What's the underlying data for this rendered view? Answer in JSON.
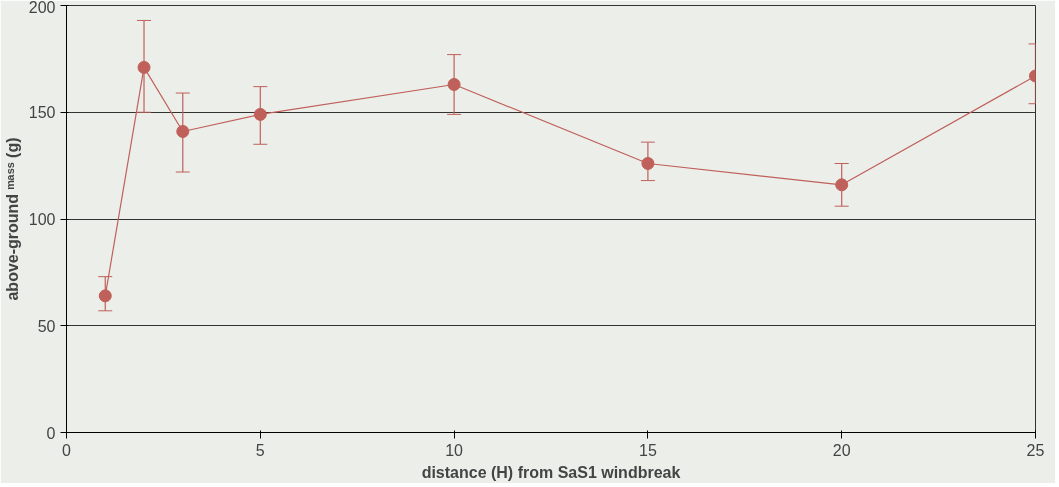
{
  "chart_data": {
    "type": "line",
    "xlabel": "distance (H) from SaS1 windbreak",
    "ylabel": "above-ground ᵐᵃˢˢ (g)",
    "x": [
      1,
      2,
      3,
      5,
      10,
      15,
      20,
      25
    ],
    "series": [
      {
        "color": "#c0605a",
        "values": [
          64,
          171,
          141,
          149,
          163,
          126,
          116,
          167
        ],
        "errors": [
          [
            57,
            73
          ],
          [
            150,
            193
          ],
          [
            122,
            159
          ],
          [
            135,
            162
          ],
          [
            149,
            177
          ],
          [
            118,
            136
          ],
          [
            106,
            126
          ],
          [
            154,
            182
          ]
        ]
      }
    ],
    "xlim": [
      0,
      25
    ],
    "xticks": [
      0,
      5,
      10,
      15,
      20,
      25
    ],
    "ylim": [
      0,
      200
    ],
    "yticks": [
      0,
      50,
      100,
      150,
      200
    ],
    "grid": "y",
    "marker": "circle",
    "line_style": "solid"
  }
}
